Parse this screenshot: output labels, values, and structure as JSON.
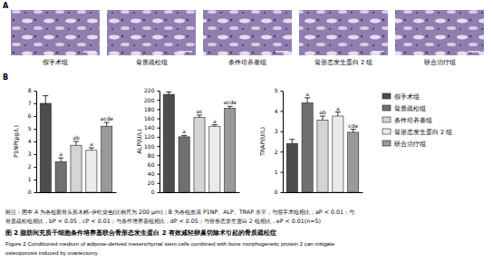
{
  "panel_a": {
    "label": "A",
    "images": [
      "假手术组",
      "骨质疏松组",
      "条件培养基组",
      "骨形态发生蛋白 2 组",
      "联合治疗组"
    ]
  },
  "panel_b_label": "B",
  "chart_data": [
    {
      "type": "bar",
      "y_label": "P1NP(μg/L)",
      "categories": [
        null,
        null,
        null,
        null,
        null
      ],
      "values": [
        7.0,
        2.4,
        3.7,
        3.3,
        5.2
      ],
      "errors": [
        0.6,
        0.3,
        0.3,
        0.2,
        0.3
      ],
      "annotations": [
        null,
        "a",
        "ab",
        "a",
        "acde"
      ],
      "colors": [
        "#4d4d4d",
        "#707070",
        "#d4d4d4",
        "#ebebeb",
        "#999999"
      ],
      "ylim": [
        0,
        8
      ],
      "yticks": [
        0,
        1,
        2,
        3,
        4,
        5,
        6,
        7,
        8
      ],
      "tick_labels": "y"
    },
    {
      "type": "bar",
      "y_label": "ALP(U/L)",
      "categories": [
        null,
        null,
        null,
        null,
        null
      ],
      "values": [
        212,
        120,
        162,
        143,
        182
      ],
      "errors": [
        5,
        3,
        5,
        3,
        4
      ],
      "annotations": [
        null,
        "a",
        "ac",
        "a",
        "acde"
      ],
      "colors": [
        "#4d4d4d",
        "#707070",
        "#d4d4d4",
        "#ebebeb",
        "#999999"
      ],
      "ylim": [
        0,
        220
      ],
      "yticks": [
        0,
        20,
        40,
        60,
        80,
        100,
        120,
        140,
        160,
        180,
        200,
        220
      ],
      "tick_labels": "y"
    },
    {
      "type": "bar",
      "y_label": "TRAP(U/L)",
      "categories": [
        "假手术组",
        "骨质疏松组",
        "条件培养基组",
        "骨形态发生蛋白 2 组",
        "联合治疗组"
      ],
      "values": [
        2.4,
        4.4,
        3.55,
        3.75,
        2.95
      ],
      "errors": [
        0.2,
        0.25,
        0.2,
        0.2,
        0.15
      ],
      "annotations": [
        null,
        "a",
        "ab",
        "a",
        "cde"
      ],
      "colors": [
        "#4d4d4d",
        "#707070",
        "#d4d4d4",
        "#ebebeb",
        "#999999"
      ],
      "ylim": [
        0,
        5
      ],
      "yticks": [
        0,
        1,
        2,
        3,
        4,
        5
      ],
      "tick_labels": "y",
      "legend": "right"
    }
  ],
  "notes": [
    "附注：图中 A 为各组股骨头苏木精-伊红染色(比例尺为 200 μm)；B 为各组血清 P1NP、ALP、TRAP 水平，与假手术组相比，aP < 0.01；与",
    "骨质疏松组相比，bP < 0.05，cP < 0.01；与条件培养基组相比，dP < 0.05；与骨形态发生蛋白 2 组相比，eP < 0.01(n=5)"
  ],
  "caption_zh": "图 2  脂肪间充质干细胞条件培养基联合骨形态发生蛋白 2 有效减轻卵巢切除术引起的骨质疏松症",
  "caption_en": [
    "Figure 2  Conditioned medium of adipose-derived mesenchymal stem cells combined with bone morphogenetic protein 2 can mitigate",
    "osteoporosis induced by ovariectomy"
  ]
}
